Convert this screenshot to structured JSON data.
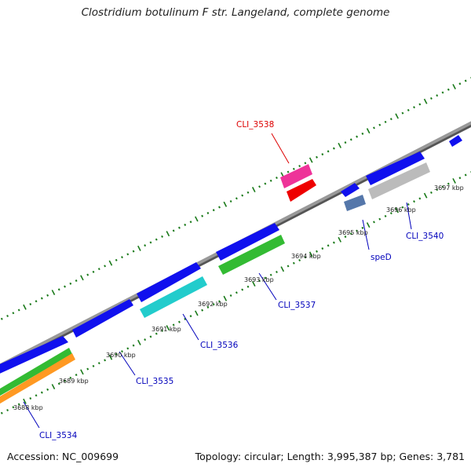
{
  "title": "Clostridium botulinum F str. Langeland, complete genome",
  "accession": "Accession: NC_009699",
  "summary": "Topology: circular; Length: 3,995,387 bp; Genes: 3,781",
  "colors": {
    "backbone": "#888888",
    "tick": "#1a7a1a",
    "gene_label": "#0000bb",
    "highlight_label": "#dd0000",
    "cds_forward": "#1010ee",
    "cds_cyan": "#22cccc",
    "cds_green": "#33bb33",
    "cds_orange": "#ff9922",
    "cds_gray": "#bbbbbb",
    "cds_steel": "#5577aa",
    "cds_pink": "#ee3399",
    "cds_red": "#ee0000"
  },
  "kbp_labels": [
    "3688 kbp",
    "3689 kbp",
    "3690 kbp",
    "3691 kbp",
    "3692 kbp",
    "3693 kbp",
    "3694 kbp",
    "3695 kbp",
    "3696 kbp",
    "3697 kbp"
  ],
  "gene_labels": [
    "CLI_3534",
    "CLI_3535",
    "CLI_3536",
    "CLI_3537",
    "speD",
    "CLI_3540",
    "CLI_3538"
  ]
}
